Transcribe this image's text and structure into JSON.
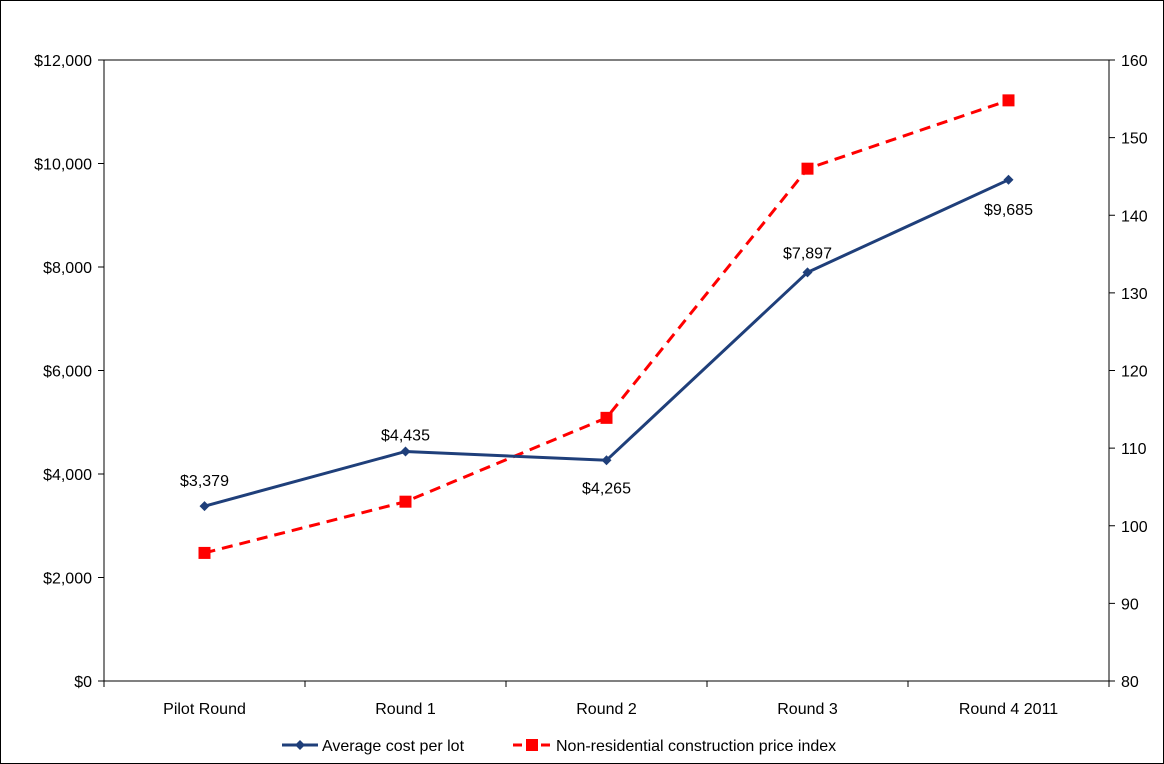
{
  "chart_data": {
    "type": "line",
    "categories": [
      "Pilot Round",
      "Round 1",
      "Round 2",
      "Round 3",
      "Round 4 2011"
    ],
    "series": [
      {
        "name": "Average cost per lot",
        "axis": "left",
        "values": [
          3379,
          4435,
          4265,
          7897,
          9685
        ],
        "data_labels": [
          "$3,379",
          "$4,435",
          "$4,265",
          "$7,897",
          "$9,685"
        ],
        "color": "#1f3f7a",
        "line_style": "solid",
        "marker": "diamond"
      },
      {
        "name": "Non-residential construction price index",
        "axis": "right",
        "values": [
          96.5,
          103.1,
          113.9,
          146.0,
          154.8
        ],
        "color": "#ff0000",
        "line_style": "dashed",
        "marker": "square"
      }
    ],
    "y_left": {
      "min": 0,
      "max": 12000,
      "step": 2000,
      "tick_labels": [
        "$0",
        "$2,000",
        "$4,000",
        "$6,000",
        "$8,000",
        "$10,000",
        "$12,000"
      ]
    },
    "y_right": {
      "min": 80,
      "max": 160,
      "step": 10,
      "tick_labels": [
        "80",
        "90",
        "100",
        "110",
        "120",
        "130",
        "140",
        "150",
        "160"
      ]
    },
    "title": "",
    "xlabel": "",
    "grid": false,
    "legend_position": "bottom"
  }
}
